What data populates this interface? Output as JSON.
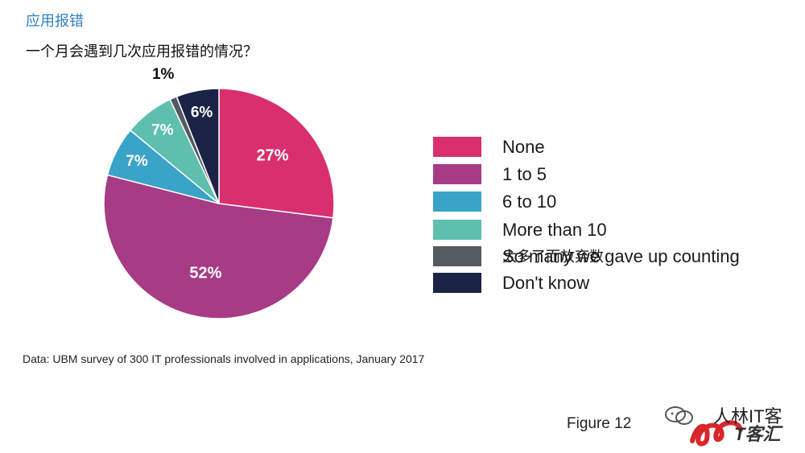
{
  "header": {
    "section_title": "应用报错",
    "question": "一个月会遇到几次应用报错的情况？"
  },
  "chart_data": {
    "type": "pie",
    "slices": [
      {
        "name": "None",
        "value": 27,
        "label": "27%",
        "color": "#d92f6e"
      },
      {
        "name": "1 to 5",
        "value": 52,
        "label": "52%",
        "color": "#a73b85"
      },
      {
        "name": "6 to 10",
        "value": 7,
        "label": "7%",
        "color": "#3aa3c8"
      },
      {
        "name": "More than 10",
        "value": 7,
        "label": "7%",
        "color": "#5ebfae"
      },
      {
        "name": "So many we gave up counting",
        "value": 1,
        "label": "1%",
        "color": "#555a60"
      },
      {
        "name": "Don't know",
        "value": 6,
        "label": "6%",
        "color": "#1b2347"
      }
    ],
    "legend_overlay_text": "太多了而放弃数",
    "legend_placement": "right"
  },
  "source_note": "Data: UBM survey of 300 IT professionals involved in applications, January 2017",
  "figure_label": "Figure 12",
  "watermark": {
    "text1": "人林IT客",
    "text2": "T客汇",
    "icon": "wechat-icon"
  }
}
